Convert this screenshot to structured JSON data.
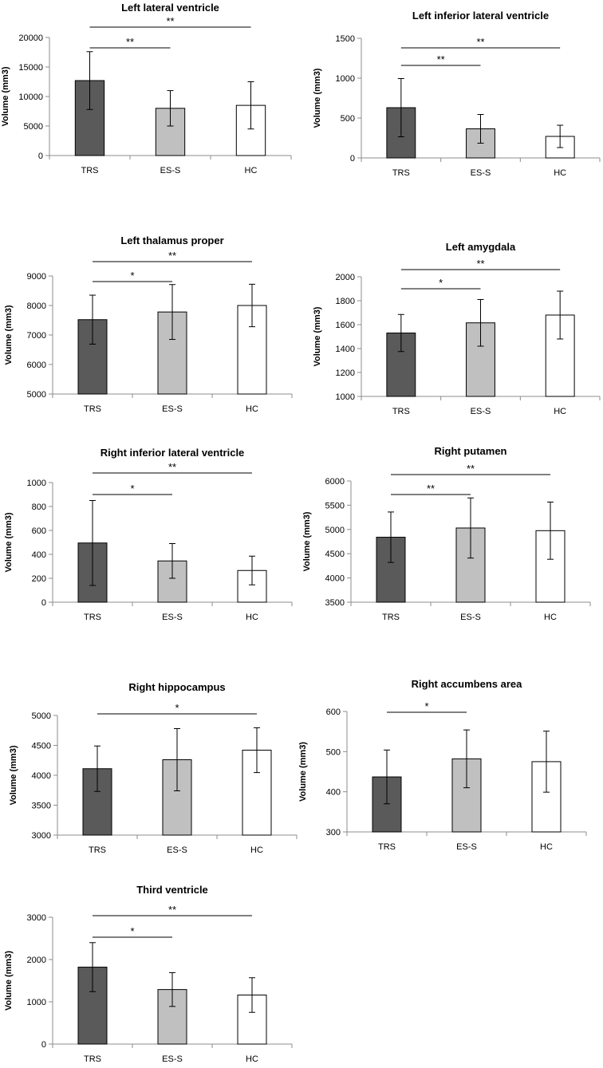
{
  "chart_data": [
    {
      "type": "bar",
      "title": "Left lateral ventricle",
      "ylabel": "Volume (mm3)",
      "categories": [
        "TRS",
        "ES-S",
        "HC"
      ],
      "values": [
        12700,
        8000,
        8500
      ],
      "errors": [
        4900,
        3000,
        4000
      ],
      "ylim": [
        0,
        20000
      ],
      "yticks": [
        0,
        5000,
        10000,
        15000,
        20000
      ],
      "significance": [
        {
          "from": "TRS",
          "to": "ES-S",
          "label": "**"
        },
        {
          "from": "TRS",
          "to": "HC",
          "label": "**"
        }
      ]
    },
    {
      "type": "bar",
      "title": "Left inferior lateral ventricle",
      "ylabel": "Volume (mm3)",
      "categories": [
        "TRS",
        "ES-S",
        "HC"
      ],
      "values": [
        630,
        365,
        270
      ],
      "errors": [
        365,
        180,
        140
      ],
      "ylim": [
        0,
        1500
      ],
      "yticks": [
        0,
        500,
        1000,
        1500
      ],
      "significance": [
        {
          "from": "TRS",
          "to": "ES-S",
          "label": "**"
        },
        {
          "from": "TRS",
          "to": "HC",
          "label": "**"
        }
      ]
    },
    {
      "type": "bar",
      "title": "Left thalamus proper",
      "ylabel": "Volume (mm3)",
      "categories": [
        "TRS",
        "ES-S",
        "HC"
      ],
      "values": [
        7520,
        7780,
        8000
      ],
      "errors": [
        830,
        930,
        720
      ],
      "ylim": [
        5000,
        9000
      ],
      "yticks": [
        5000,
        6000,
        7000,
        8000,
        9000
      ],
      "significance": [
        {
          "from": "TRS",
          "to": "ES-S",
          "label": "*"
        },
        {
          "from": "TRS",
          "to": "HC",
          "label": "**"
        }
      ]
    },
    {
      "type": "bar",
      "title": "Left amygdala",
      "ylabel": "Volume (mm3)",
      "categories": [
        "TRS",
        "ES-S",
        "HC"
      ],
      "values": [
        1530,
        1615,
        1680
      ],
      "errors": [
        155,
        195,
        200
      ],
      "ylim": [
        1000,
        2000
      ],
      "yticks": [
        1000,
        1200,
        1400,
        1600,
        1800,
        2000
      ],
      "significance": [
        {
          "from": "TRS",
          "to": "ES-S",
          "label": "*"
        },
        {
          "from": "TRS",
          "to": "HC",
          "label": "**"
        }
      ]
    },
    {
      "type": "bar",
      "title": "Right inferior lateral ventricle",
      "ylabel": "Volume (mm3)",
      "categories": [
        "TRS",
        "ES-S",
        "HC"
      ],
      "values": [
        495,
        345,
        265
      ],
      "errors": [
        355,
        145,
        120
      ],
      "ylim": [
        0,
        1000
      ],
      "yticks": [
        0,
        200,
        400,
        600,
        800,
        1000
      ],
      "significance": [
        {
          "from": "TRS",
          "to": "ES-S",
          "label": "*"
        },
        {
          "from": "TRS",
          "to": "HC",
          "label": "**"
        }
      ]
    },
    {
      "type": "bar",
      "title": "Right putamen",
      "ylabel": "Volume (mm3)",
      "categories": [
        "TRS",
        "ES-S",
        "HC"
      ],
      "values": [
        4840,
        5030,
        4975
      ],
      "errors": [
        520,
        620,
        590
      ],
      "ylim": [
        3500,
        6000
      ],
      "yticks": [
        3500,
        4000,
        4500,
        5000,
        5500,
        6000
      ],
      "significance": [
        {
          "from": "TRS",
          "to": "ES-S",
          "label": "**"
        },
        {
          "from": "TRS",
          "to": "HC",
          "label": "**"
        }
      ]
    },
    {
      "type": "bar",
      "title": "Right hippocampus",
      "ylabel": "Volume (mm3)",
      "categories": [
        "TRS",
        "ES-S",
        "HC"
      ],
      "values": [
        4110,
        4260,
        4420
      ],
      "errors": [
        380,
        520,
        375
      ],
      "ylim": [
        3000,
        5000
      ],
      "yticks": [
        3000,
        3500,
        4000,
        4500,
        5000
      ],
      "significance": [
        {
          "from": "TRS",
          "to": "HC",
          "label": "*"
        }
      ]
    },
    {
      "type": "bar",
      "title": "Right accumbens area",
      "ylabel": "Volume (mm3)",
      "categories": [
        "TRS",
        "ES-S",
        "HC"
      ],
      "values": [
        437,
        482,
        475
      ],
      "errors": [
        67,
        72,
        76
      ],
      "ylim": [
        300,
        600
      ],
      "yticks": [
        300,
        400,
        500,
        600
      ],
      "significance": [
        {
          "from": "TRS",
          "to": "ES-S",
          "label": "*"
        }
      ]
    },
    {
      "type": "bar",
      "title": "Third ventricle",
      "ylabel": "Volume (mm3)",
      "categories": [
        "TRS",
        "ES-S",
        "HC"
      ],
      "values": [
        1820,
        1290,
        1160
      ],
      "errors": [
        580,
        400,
        410
      ],
      "ylim": [
        0,
        3000
      ],
      "yticks": [
        0,
        1000,
        2000,
        3000
      ],
      "significance": [
        {
          "from": "TRS",
          "to": "ES-S",
          "label": "*"
        },
        {
          "from": "TRS",
          "to": "HC",
          "label": "**"
        }
      ]
    }
  ],
  "colors": {
    "TRS": "#5a5a5a",
    "ES-S": "#c0c0c0",
    "HC": "#ffffff",
    "axis": "#8c8c8c",
    "text": "#000000"
  }
}
